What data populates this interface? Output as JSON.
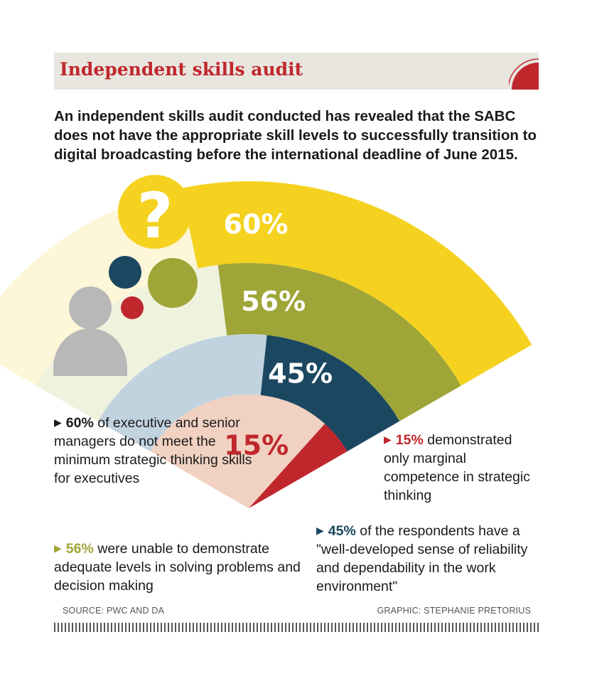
{
  "header": {
    "title": "Independent skills audit"
  },
  "intro": "An independent skills audit conducted has revealed that the SABC does not have the appropriate skill levels to successfully transition to digital broadcasting before the international deadline of June 2015.",
  "chart_data": {
    "type": "radial-bar",
    "series": [
      {
        "value": 60,
        "label": "60%",
        "color": "#f5d21f",
        "track_color": "#fdf6d8"
      },
      {
        "value": 56,
        "label": "56%",
        "color": "#9fa537",
        "track_color": "#eff2dc"
      },
      {
        "value": 45,
        "label": "45%",
        "color": "#1b4760",
        "track_color": "#c2d3e0"
      },
      {
        "value": 15,
        "label": "15%",
        "color": "#c0272d",
        "track_color": "#f1d1c1"
      }
    ]
  },
  "callouts": {
    "executives": {
      "pct": "60%",
      "text": " of executive and senior managers do not meet the minimum strategic thinking skills for executives",
      "color": "#1a1a1a"
    },
    "problems": {
      "pct": "56%",
      "text": " were unable to demonstrate adequate levels in solving problems and decision making",
      "color": "#9fa537"
    },
    "marginal": {
      "pct": "15%",
      "text": " demonstrated only marginal competence in strategic thinking",
      "color": "#c0272d"
    },
    "respondents": {
      "pct": "45%",
      "text": " of the respondents have a \"well-developed sense of reliability and dependability in the work environment\"",
      "color": "#1b4760"
    }
  },
  "icons": {
    "question": {
      "glyph": "?",
      "color": "#f5d21f"
    },
    "dot_colors": [
      "#1b4760",
      "#9fa537",
      "#c0272d"
    ],
    "person_color": "#b8b8b8"
  },
  "footer": {
    "source": "SOURCE: PWC AND DA",
    "credit": "GRAPHIC: STEPHANIE PRETORIUS"
  }
}
